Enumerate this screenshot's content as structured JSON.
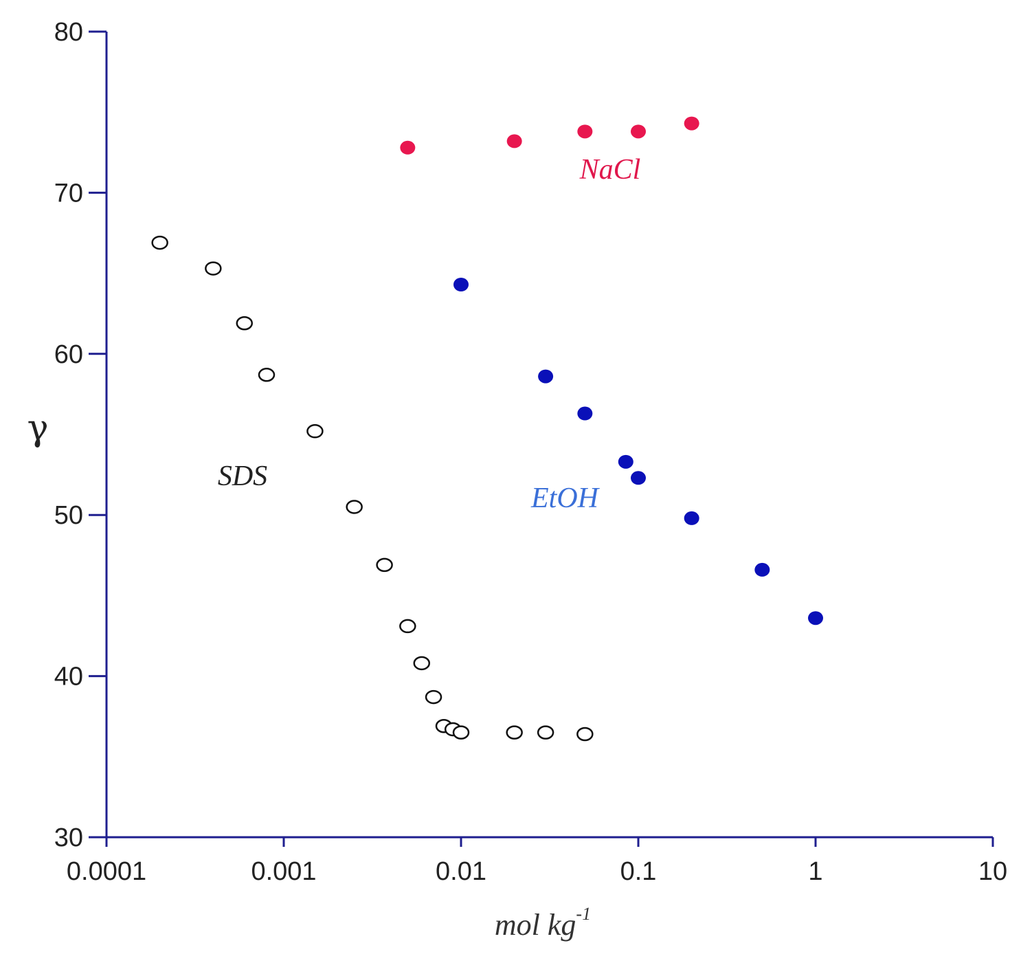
{
  "chart_data": {
    "type": "scatter",
    "title": "",
    "xlabel": "mol kg",
    "xlabel_sup": "-1",
    "ylabel": "γ",
    "xscale": "log",
    "xlim": [
      0.0001,
      10
    ],
    "ylim": [
      30,
      80
    ],
    "xticks": [
      0.0001,
      0.001,
      0.01,
      0.1,
      1,
      10
    ],
    "xtick_labels": [
      "0.0001",
      "0.001",
      "0.01",
      "0.1",
      "1",
      "10"
    ],
    "yticks": [
      30,
      40,
      50,
      60,
      70,
      80
    ],
    "ytick_labels": [
      "30",
      "40",
      "50",
      "60",
      "70",
      "80"
    ],
    "grid": false,
    "axis_color": "#1f1f8f",
    "series": [
      {
        "name": "NaCl",
        "marker": "filled-circle",
        "color": "#e8174f",
        "label_color": "#e0174c",
        "x": [
          0.005,
          0.02,
          0.05,
          0.1,
          0.2
        ],
        "y": [
          72.8,
          73.2,
          73.8,
          73.8,
          74.3
        ]
      },
      {
        "name": "EtOH",
        "marker": "filled-circle",
        "color": "#0a10b8",
        "label_color": "#3a6fd8",
        "x": [
          0.01,
          0.03,
          0.05,
          0.085,
          0.1,
          0.2,
          0.5,
          1
        ],
        "y": [
          64.3,
          58.6,
          56.3,
          53.3,
          52.3,
          49.8,
          46.6,
          43.6
        ]
      },
      {
        "name": "SDS",
        "marker": "open-circle",
        "color": "#111111",
        "label_color": "#222222",
        "x": [
          0.0002,
          0.0004,
          0.0006,
          0.0008,
          0.0015,
          0.0025,
          0.0037,
          0.005,
          0.006,
          0.007,
          0.008,
          0.009,
          0.01,
          0.02,
          0.03,
          0.05
        ],
        "y": [
          66.9,
          65.3,
          61.9,
          58.7,
          55.2,
          50.5,
          46.9,
          43.1,
          40.8,
          38.7,
          36.9,
          36.7,
          36.5,
          36.5,
          36.5,
          36.4
        ]
      }
    ],
    "annotations": [
      "NaCl",
      "EtOH",
      "SDS"
    ]
  }
}
